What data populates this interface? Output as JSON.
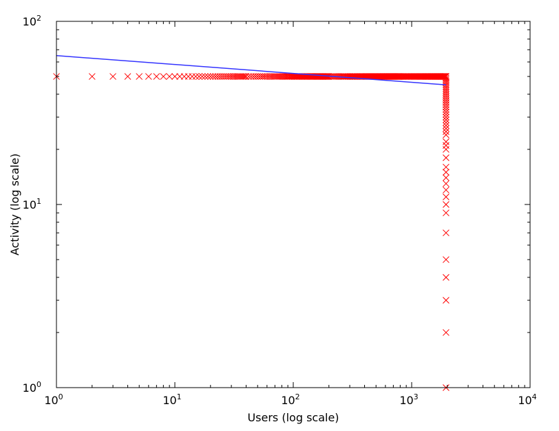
{
  "chart_data": {
    "type": "scatter",
    "title": "",
    "xlabel": "Users (log scale)",
    "ylabel": "Activity (log scale)",
    "x_scale": "log",
    "y_scale": "log",
    "xlim": [
      1,
      10000
    ],
    "ylim": [
      1,
      100
    ],
    "x_ticks": [
      {
        "value": 1,
        "base": "10",
        "exp": "0"
      },
      {
        "value": 10,
        "base": "10",
        "exp": "1"
      },
      {
        "value": 100,
        "base": "10",
        "exp": "2"
      },
      {
        "value": 1000,
        "base": "10",
        "exp": "3"
      },
      {
        "value": 10000,
        "base": "10",
        "exp": "4"
      }
    ],
    "y_ticks": [
      {
        "value": 1,
        "base": "10",
        "exp": "0"
      },
      {
        "value": 10,
        "base": "10",
        "exp": "1"
      },
      {
        "value": 100,
        "base": "10",
        "exp": "2"
      }
    ],
    "grid": false,
    "legend": "none",
    "series": [
      {
        "kind": "scatter",
        "marker": "x",
        "color": "#ff0000",
        "points_flat_level": {
          "y": 50,
          "x_from": 1,
          "x_to": 1950
        },
        "points_tail": {
          "x": 1950,
          "y": [
            50,
            49,
            48,
            47,
            46,
            45,
            44,
            43,
            42,
            41,
            40,
            39,
            38,
            37,
            36,
            35,
            34,
            33,
            32,
            31,
            30,
            29,
            28,
            27,
            26,
            25,
            24,
            22,
            21,
            20,
            18,
            16,
            15,
            14,
            13,
            12,
            11,
            10,
            9,
            7,
            5,
            4,
            3,
            2,
            1
          ]
        }
      },
      {
        "kind": "line",
        "color": "#3333ff",
        "x": [
          1,
          1950
        ],
        "y": [
          65,
          45
        ]
      }
    ]
  }
}
